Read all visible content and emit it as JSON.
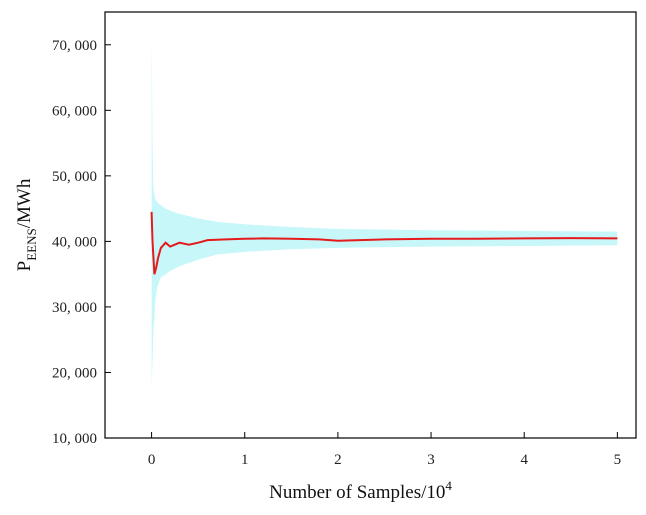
{
  "chart_data": {
    "type": "line",
    "title": "",
    "xlabel": {
      "text": "Number of Samples/10",
      "sup": "4"
    },
    "ylabel": {
      "main": "P",
      "sub": "EENS",
      "rest": "/MWh"
    },
    "xlim": [
      -0.5,
      5.2
    ],
    "ylim": [
      10000,
      75000
    ],
    "x_ticks": [
      0,
      1,
      2,
      3,
      4,
      5
    ],
    "x_tick_labels": [
      "0",
      "1",
      "2",
      "3",
      "4",
      "5"
    ],
    "y_ticks": [
      10000,
      20000,
      30000,
      40000,
      50000,
      60000,
      70000
    ],
    "y_tick_labels": [
      "10, 000",
      "20, 000",
      "30, 000",
      "40, 000",
      "50, 000",
      "60, 000",
      "70, 000"
    ],
    "grid": false,
    "legend": "none",
    "series": [
      {
        "kind": "line",
        "color": "#e41a1c",
        "x": [
          0,
          0.01,
          0.03,
          0.05,
          0.07,
          0.1,
          0.15,
          0.2,
          0.3,
          0.4,
          0.5,
          0.6,
          0.8,
          1.0,
          1.2,
          1.5,
          1.8,
          2.0,
          2.5,
          3.0,
          3.5,
          4.0,
          4.5,
          5.0
        ],
        "y": [
          44500,
          40000,
          35000,
          36000,
          37500,
          39000,
          39800,
          39200,
          39800,
          39500,
          39800,
          40200,
          40300,
          40400,
          40450,
          40400,
          40300,
          40100,
          40300,
          40400,
          40400,
          40450,
          40500,
          40450
        ]
      },
      {
        "kind": "band",
        "color": "#c8f7f9",
        "x": [
          0,
          0.005,
          0.01,
          0.02,
          0.04,
          0.06,
          0.1,
          0.15,
          0.2,
          0.3,
          0.5,
          0.7,
          1.0,
          1.5,
          2.0,
          3.0,
          4.0,
          5.0
        ],
        "upper": [
          70500,
          65000,
          55000,
          48000,
          46500,
          46000,
          45500,
          45000,
          44700,
          44200,
          43500,
          43000,
          42600,
          42200,
          41900,
          41700,
          41600,
          41500
        ],
        "lower": [
          18000,
          19500,
          21500,
          26000,
          31000,
          33000,
          34500,
          35000,
          35500,
          36200,
          37200,
          38000,
          38400,
          38800,
          39000,
          39200,
          39300,
          39400
        ]
      }
    ]
  }
}
